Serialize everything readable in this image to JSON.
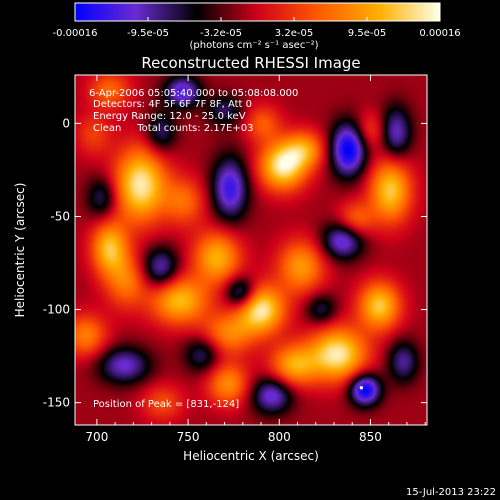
{
  "chart_data": {
    "type": "heatmap",
    "title": "Reconstructed RHESSI Image",
    "xlabel": "Heliocentric X (arcsec)",
    "ylabel": "Heliocentric Y (arcsec)",
    "xlim": [
      688,
      881
    ],
    "ylim": [
      -162,
      26
    ],
    "xticks": [
      700,
      750,
      800,
      850
    ],
    "xtick_labels": [
      "700",
      "750",
      "800",
      "850"
    ],
    "yticks": [
      0,
      -50,
      -100,
      -150
    ],
    "ytick_labels": [
      "0",
      "-50",
      "-100",
      "-150"
    ],
    "colorbar": {
      "min": -0.00016,
      "max": 0.00016,
      "tick_labels": [
        "-0.00016",
        "-9.5e-05",
        "-3.2e-05",
        "3.2e-05",
        "9.5e-05",
        "0.00016"
      ],
      "units": "(photons cm⁻² s⁻¹ asec⁻²)",
      "colormap": [
        "#0000ff",
        "#6a2bd0",
        "#000000",
        "#d0001a",
        "#ff5a00",
        "#ffb000",
        "#ffffe8"
      ]
    },
    "annotations": {
      "time": "6-Apr-2006 05:05:40.000 to 05:08:08.000",
      "detectors": "Detectors: 4F 5F 6F 7F 8F, Att 0",
      "energy": "Energy Range: 12.0 - 25.0 keV",
      "clean": "Clean     Total counts: 2.17E+03",
      "peak": "Position of Peak = [831,-124]"
    },
    "peak": [
      831,
      -124
    ],
    "peak_marker": [
      845,
      -142
    ],
    "blobs": [
      {
        "x": 724,
        "y": -33,
        "sx": 10,
        "sy": 14,
        "a": 1.0
      },
      {
        "x": 707,
        "y": -67,
        "sx": 7,
        "sy": 10,
        "a": 0.8
      },
      {
        "x": 716,
        "y": -85,
        "sx": 8,
        "sy": 10,
        "a": 0.5
      },
      {
        "x": 745,
        "y": -95,
        "sx": 11,
        "sy": 9,
        "a": 0.8
      },
      {
        "x": 766,
        "y": -72,
        "sx": 9,
        "sy": 10,
        "a": 0.75
      },
      {
        "x": 790,
        "y": -100,
        "sx": 9,
        "sy": 9,
        "a": 1.0
      },
      {
        "x": 772,
        "y": -113,
        "sx": 10,
        "sy": 8,
        "a": 0.55
      },
      {
        "x": 802,
        "y": -23,
        "sx": 9,
        "sy": 9,
        "a": 1.0
      },
      {
        "x": 814,
        "y": -14,
        "sx": 8,
        "sy": 7,
        "a": 0.6
      },
      {
        "x": 812,
        "y": -77,
        "sx": 9,
        "sy": 10,
        "a": 0.65
      },
      {
        "x": 832,
        "y": -124,
        "sx": 11,
        "sy": 10,
        "a": 1.0
      },
      {
        "x": 808,
        "y": -130,
        "sx": 9,
        "sy": 8,
        "a": 0.7
      },
      {
        "x": 861,
        "y": -36,
        "sx": 8,
        "sy": 12,
        "a": 0.85
      },
      {
        "x": 855,
        "y": -98,
        "sx": 8,
        "sy": 9,
        "a": 0.85
      },
      {
        "x": 772,
        "y": -140,
        "sx": 8,
        "sy": 8,
        "a": 0.6
      },
      {
        "x": 850,
        "y": -4,
        "sx": 6,
        "sy": 7,
        "a": 0.35
      },
      {
        "x": 842,
        "y": -52,
        "sx": 7,
        "sy": 7,
        "a": 0.45
      },
      {
        "x": 748,
        "y": -42,
        "sx": 8,
        "sy": 9,
        "a": 0.45
      },
      {
        "x": 694,
        "y": -114,
        "sx": 8,
        "sy": 8,
        "a": 0.55
      },
      {
        "x": 736,
        "y": -150,
        "sx": 8,
        "sy": 7,
        "a": 0.35
      },
      {
        "x": 707,
        "y": 18,
        "sx": 8,
        "sy": 7,
        "a": 0.45
      },
      {
        "x": 791,
        "y": 0,
        "sx": 7,
        "sy": 7,
        "a": 0.4
      },
      {
        "x": 698,
        "y": -6,
        "sx": 7,
        "sy": 8,
        "a": 0.3
      },
      {
        "x": 747,
        "y": 17,
        "sx": 7,
        "sy": 6,
        "a": -0.7
      },
      {
        "x": 735,
        "y": -5,
        "sx": 6,
        "sy": 8,
        "a": -0.45
      },
      {
        "x": 773,
        "y": -35,
        "sx": 7,
        "sy": 12,
        "a": -0.75
      },
      {
        "x": 838,
        "y": -14,
        "sx": 7,
        "sy": 10,
        "a": -0.95
      },
      {
        "x": 864,
        "y": -5,
        "sx": 6,
        "sy": 10,
        "a": -0.6
      },
      {
        "x": 735,
        "y": -78,
        "sx": 7,
        "sy": 8,
        "a": -0.6
      },
      {
        "x": 703,
        "y": -40,
        "sx": 6,
        "sy": 8,
        "a": -0.45
      },
      {
        "x": 779,
        "y": -91,
        "sx": 6,
        "sy": 6,
        "a": -0.65
      },
      {
        "x": 835,
        "y": -63,
        "sx": 8,
        "sy": 7,
        "a": -0.7
      },
      {
        "x": 715,
        "y": -130,
        "sx": 10,
        "sy": 7,
        "a": -0.6
      },
      {
        "x": 758,
        "y": -124,
        "sx": 7,
        "sy": 7,
        "a": -0.45
      },
      {
        "x": 796,
        "y": -146,
        "sx": 8,
        "sy": 7,
        "a": -0.65
      },
      {
        "x": 847,
        "y": -143,
        "sx": 6,
        "sy": 6,
        "a": -0.95
      },
      {
        "x": 868,
        "y": -128,
        "sx": 6,
        "sy": 8,
        "a": -0.5
      },
      {
        "x": 823,
        "y": -100,
        "sx": 6,
        "sy": 6,
        "a": -0.4
      },
      {
        "x": 770,
        "y": 7,
        "sx": 7,
        "sy": 6,
        "a": -0.4
      }
    ]
  },
  "footer": {
    "timestamp": "15-Jul-2013 23:22"
  }
}
